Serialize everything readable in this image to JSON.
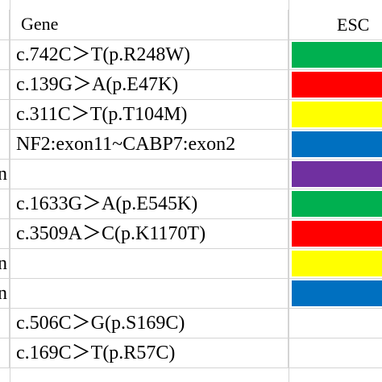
{
  "header": {
    "gene_label": "Gene",
    "esc_label": "ESC"
  },
  "rows": [
    {
      "cut": "",
      "gene": "c.742C＞T(p.R248W)",
      "color": "#00b050"
    },
    {
      "cut": "",
      "gene": "c.139G＞A(p.E47K)",
      "color": "#ff0000"
    },
    {
      "cut": "",
      "gene": "c.311C＞T(p.T104M)",
      "color": "#ffff00"
    },
    {
      "cut": "",
      "gene": "NF2:exon11~CABP7:exon2",
      "color": "#0070c0"
    },
    {
      "cut": "n",
      "gene": "",
      "color": "#7030a0"
    },
    {
      "cut": "",
      "gene": "c.1633G＞A(p.E545K)",
      "color": "#00b050"
    },
    {
      "cut": "",
      "gene": "c.3509A＞C(p.K1170T)",
      "color": "#ff0000"
    },
    {
      "cut": "n",
      "gene": "",
      "color": "#ffff00"
    },
    {
      "cut": "n",
      "gene": "",
      "color": "#0070c0"
    },
    {
      "cut": "",
      "gene": "c.506C＞G(p.S169C)",
      "color": ""
    },
    {
      "cut": "",
      "gene": "c.169C＞T(p.R57C)",
      "color": ""
    }
  ]
}
